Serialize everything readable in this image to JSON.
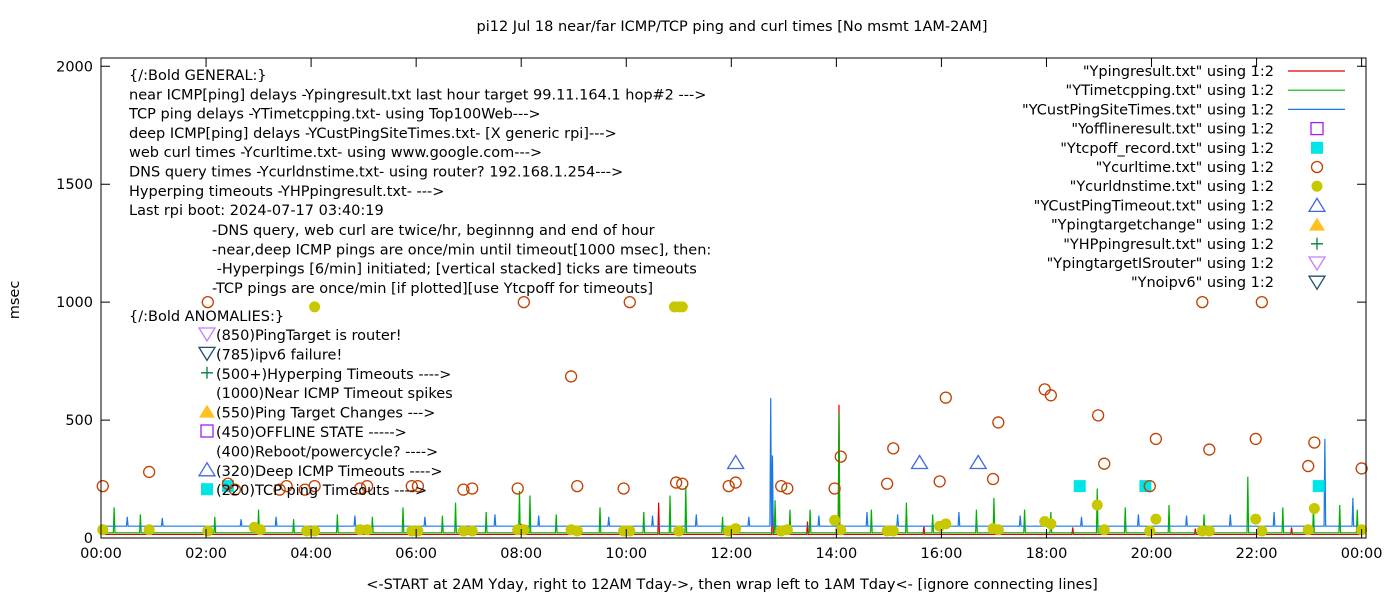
{
  "chart_data": {
    "type": "scatter",
    "title": "pi12 Jul 18  near/far ICMP/TCP ping and curl times [No msmt 1AM-2AM]",
    "xlabel": "<-START at 2AM Yday, right to 12AM Tday->, then wrap left to 1AM Tday<- [ignore connecting lines]",
    "ylabel": "msec",
    "xlim": [
      "00:00",
      "24:05"
    ],
    "ylim": [
      0,
      2035
    ],
    "x_ticks": [
      "00:00",
      "02:00",
      "04:00",
      "06:00",
      "08:00",
      "10:00",
      "12:00",
      "14:00",
      "16:00",
      "18:00",
      "20:00",
      "22:00",
      "00:00"
    ],
    "y_ticks": [
      0,
      500,
      1000,
      1500,
      2000
    ],
    "grid": false,
    "legend_placement": "top-right",
    "legend": [
      {
        "label": "\"Ypingresult.txt\" using 1:2",
        "style": "line",
        "color": "#e00000"
      },
      {
        "label": "\"YTimetcpping.txt\" using 1:2",
        "style": "line",
        "color": "#00b000"
      },
      {
        "label": "\"YCustPingSiteTimes.txt\" using 1:2",
        "style": "line",
        "color": "#1a78e8"
      },
      {
        "label": "\"Yofflineresult.txt\" using 1:2",
        "style": "open-square",
        "color": "#a020f0"
      },
      {
        "label": "\"Ytcpoff_record.txt\" using 1:2",
        "style": "filled-square",
        "color": "#00e5e5"
      },
      {
        "label": "\"Ycurltime.txt\" using 1:2",
        "style": "open-circle",
        "color": "#c04000"
      },
      {
        "label": "\"Ycurldnstime.txt\" using 1:2",
        "style": "filled-circle",
        "color": "#c8c800"
      },
      {
        "label": "\"YCustPingTimeout.txt\" using 1:2",
        "style": "open-triangle",
        "color": "#4169e1"
      },
      {
        "label": "\"Ypingtargetchange\" using 1:2",
        "style": "filled-triangle",
        "color": "#ffc020"
      },
      {
        "label": "\"YHPpingresult.txt\" using 1:2",
        "style": "plus",
        "color": "#008040"
      },
      {
        "label": "\"YpingtargetISrouter\" using 1:2",
        "style": "open-down-triangle",
        "color": "#c080ff"
      },
      {
        "label": "\"Ynoipv6\" using 1:2",
        "style": "open-down-triangle",
        "color": "#1f4f6f"
      }
    ],
    "line_series": [
      {
        "key": "Ypingresult",
        "color": "#e00000",
        "baseline": 15,
        "spikes": [
          [
            "08:00",
            60
          ],
          [
            "10:37",
            150
          ],
          [
            "12:47",
            230
          ],
          [
            "13:27",
            70
          ],
          [
            "14:03",
            565
          ],
          [
            "15:40",
            50
          ],
          [
            "18:30",
            45
          ],
          [
            "20:50",
            40
          ],
          [
            "22:40",
            45
          ]
        ]
      },
      {
        "key": "YTimetcpping",
        "color": "#00b000",
        "baseline": 22,
        "spikes": [
          [
            "00:15",
            130
          ],
          [
            "00:45",
            100
          ],
          [
            "02:10",
            90
          ],
          [
            "03:00",
            120
          ],
          [
            "03:40",
            80
          ],
          [
            "04:30",
            100
          ],
          [
            "05:10",
            90
          ],
          [
            "05:45",
            130
          ],
          [
            "06:30",
            95
          ],
          [
            "06:45",
            150
          ],
          [
            "07:20",
            110
          ],
          [
            "07:58",
            200
          ],
          [
            "08:10",
            180
          ],
          [
            "08:40",
            100
          ],
          [
            "09:30",
            130
          ],
          [
            "10:20",
            110
          ],
          [
            "10:50",
            180
          ],
          [
            "11:08",
            220
          ],
          [
            "11:50",
            90
          ],
          [
            "12:50",
            160
          ],
          [
            "13:07",
            120
          ],
          [
            "13:30",
            120
          ],
          [
            "14:03",
            530
          ],
          [
            "14:40",
            120
          ],
          [
            "15:20",
            150
          ],
          [
            "15:50",
            100
          ],
          [
            "16:40",
            120
          ],
          [
            "17:00",
            170
          ],
          [
            "17:35",
            120
          ],
          [
            "18:05",
            110
          ],
          [
            "18:58",
            210
          ],
          [
            "19:30",
            130
          ],
          [
            "20:20",
            140
          ],
          [
            "21:00",
            100
          ],
          [
            "21:50",
            260
          ],
          [
            "22:30",
            130
          ],
          [
            "23:05",
            140
          ],
          [
            "23:35",
            140
          ],
          [
            "23:55",
            120
          ]
        ]
      },
      {
        "key": "YCustPingSiteTimes",
        "color": "#1a78e8",
        "baseline": 50,
        "spikes": [
          [
            "00:30",
            90
          ],
          [
            "01:10",
            85
          ],
          [
            "02:40",
            80
          ],
          [
            "03:20",
            90
          ],
          [
            "04:50",
            95
          ],
          [
            "06:10",
            90
          ],
          [
            "07:30",
            100
          ],
          [
            "08:20",
            95
          ],
          [
            "09:40",
            90
          ],
          [
            "10:30",
            95
          ],
          [
            "11:20",
            100
          ],
          [
            "12:20",
            90
          ],
          [
            "12:45",
            593
          ],
          [
            "12:47",
            350
          ],
          [
            "13:40",
            95
          ],
          [
            "14:35",
            110
          ],
          [
            "15:10",
            100
          ],
          [
            "16:20",
            110
          ],
          [
            "17:30",
            95
          ],
          [
            "18:40",
            90
          ],
          [
            "19:45",
            100
          ],
          [
            "20:40",
            95
          ],
          [
            "21:30",
            100
          ],
          [
            "22:20",
            110
          ],
          [
            "23:18",
            420
          ],
          [
            "23:50",
            170
          ]
        ]
      }
    ],
    "Ycurltime": [
      [
        "00:02",
        220
      ],
      [
        "00:55",
        280
      ],
      [
        "02:02",
        1000
      ],
      [
        "02:25",
        230
      ],
      [
        "02:33",
        205
      ],
      [
        "03:24",
        205
      ],
      [
        "03:32",
        220
      ],
      [
        "03:53",
        205
      ],
      [
        "04:04",
        220
      ],
      [
        "04:56",
        210
      ],
      [
        "05:04",
        220
      ],
      [
        "05:55",
        220
      ],
      [
        "06:02",
        220
      ],
      [
        "06:54",
        205
      ],
      [
        "07:04",
        210
      ],
      [
        "07:56",
        210
      ],
      [
        "08:03",
        1000
      ],
      [
        "08:57",
        685
      ],
      [
        "09:04",
        220
      ],
      [
        "09:57",
        210
      ],
      [
        "10:04",
        1000
      ],
      [
        "10:57",
        235
      ],
      [
        "11:04",
        230
      ],
      [
        "11:57",
        220
      ],
      [
        "12:05",
        235
      ],
      [
        "12:57",
        220
      ],
      [
        "13:04",
        210
      ],
      [
        "13:58",
        210
      ],
      [
        "14:05",
        345
      ],
      [
        "14:58",
        230
      ],
      [
        "15:05",
        380
      ],
      [
        "15:58",
        240
      ],
      [
        "16:05",
        595
      ],
      [
        "16:59",
        250
      ],
      [
        "17:05",
        490
      ],
      [
        "17:58",
        630
      ],
      [
        "18:05",
        605
      ],
      [
        "18:59",
        520
      ],
      [
        "19:06",
        315
      ],
      [
        "19:58",
        220
      ],
      [
        "20:05",
        420
      ],
      [
        "20:58",
        1000
      ],
      [
        "21:06",
        375
      ],
      [
        "21:59",
        420
      ],
      [
        "22:06",
        1000
      ],
      [
        "22:59",
        305
      ],
      [
        "23:06",
        405
      ],
      [
        "24:00",
        295
      ]
    ],
    "Ycurldnstime": [
      [
        "00:02",
        35
      ],
      [
        "00:55",
        35
      ],
      [
        "02:02",
        30
      ],
      [
        "02:55",
        45
      ],
      [
        "03:02",
        35
      ],
      [
        "03:55",
        30
      ],
      [
        "04:04",
        980
      ],
      [
        "04:04",
        30
      ],
      [
        "04:56",
        35
      ],
      [
        "05:04",
        35
      ],
      [
        "05:55",
        30
      ],
      [
        "06:02",
        30
      ],
      [
        "06:54",
        30
      ],
      [
        "07:04",
        30
      ],
      [
        "07:56",
        35
      ],
      [
        "08:03",
        35
      ],
      [
        "08:57",
        35
      ],
      [
        "09:04",
        30
      ],
      [
        "09:57",
        30
      ],
      [
        "10:04",
        30
      ],
      [
        "10:55",
        980
      ],
      [
        "11:00",
        980
      ],
      [
        "11:04",
        980
      ],
      [
        "11:00",
        30
      ],
      [
        "11:57",
        30
      ],
      [
        "12:05",
        40
      ],
      [
        "12:57",
        30
      ],
      [
        "13:04",
        35
      ],
      [
        "13:58",
        75
      ],
      [
        "14:05",
        35
      ],
      [
        "14:58",
        30
      ],
      [
        "15:05",
        30
      ],
      [
        "15:58",
        50
      ],
      [
        "16:05",
        60
      ],
      [
        "16:59",
        40
      ],
      [
        "17:05",
        35
      ],
      [
        "17:58",
        70
      ],
      [
        "18:05",
        60
      ],
      [
        "18:58",
        140
      ],
      [
        "19:06",
        35
      ],
      [
        "19:58",
        30
      ],
      [
        "20:05",
        80
      ],
      [
        "20:58",
        30
      ],
      [
        "21:06",
        30
      ],
      [
        "21:59",
        80
      ],
      [
        "22:06",
        30
      ],
      [
        "22:59",
        35
      ],
      [
        "23:06",
        125
      ],
      [
        "24:00",
        35
      ]
    ],
    "YCustPingTimeout": [
      [
        "12:05",
        320
      ],
      [
        "15:35",
        320
      ],
      [
        "16:42",
        320
      ]
    ],
    "Ytcpoff_record": [
      [
        "02:25",
        220
      ],
      [
        "18:38",
        220
      ],
      [
        "19:53",
        220
      ],
      [
        "23:11",
        220
      ]
    ],
    "annotations": {
      "general": [
        "{/:Bold GENERAL:}",
        "near ICMP[ping] delays -Ypingresult.txt last hour target 99.11.164.1 hop#2 --->",
        "TCP ping delays -YTimetcpping.txt- using Top100Web--->",
        "deep ICMP[ping] delays -YCustPingSiteTimes.txt- [X generic rpi]--->",
        "web curl times -Ycurltime.txt- using www.google.com--->",
        "DNS query times -Ycurldnstime.txt- using router? 192.168.1.254--->",
        "Hyperping timeouts -YHPpingresult.txt- --->",
        "Last rpi boot: 2024-07-17 03:40:19"
      ],
      "notes": [
        "-DNS query, web curl are twice/hr, beginnng and end of hour",
        "-near,deep ICMP pings are once/min until timeout[1000 msec], then:",
        " -Hyperpings [6/min] initiated; [vertical stacked] ticks are timeouts",
        "-TCP pings are once/min [if plotted][use Ytcpoff for timeouts]"
      ],
      "anomalies_title": "{/:Bold ANOMALIES:}",
      "anomalies": [
        {
          "text": "(850)PingTarget is router!",
          "marker": "open-down-triangle",
          "color": "#c080ff"
        },
        {
          "text": "(785)ipv6 failure!",
          "marker": "open-down-triangle",
          "color": "#1f4f6f"
        },
        {
          "text": "(500+)Hyperping Timeouts ---->",
          "marker": "plus",
          "color": "#008040"
        },
        {
          "text": "(1000)Near ICMP Timeout spikes",
          "marker": "none",
          "color": "#000000"
        },
        {
          "text": "(550)Ping Target Changes --->",
          "marker": "filled-triangle",
          "color": "#ffc020"
        },
        {
          "text": "(450)OFFLINE STATE ----->",
          "marker": "open-square",
          "color": "#a020f0"
        },
        {
          "text": "(400)Reboot/powercycle? ---->",
          "marker": "none",
          "color": "#000000"
        },
        {
          "text": "(320)Deep ICMP Timeouts ---->",
          "marker": "open-triangle",
          "color": "#4169e1"
        },
        {
          "text": "(220)TCP ping Timeouts ---->",
          "marker": "filled-square",
          "color": "#00e5e5"
        }
      ]
    }
  }
}
